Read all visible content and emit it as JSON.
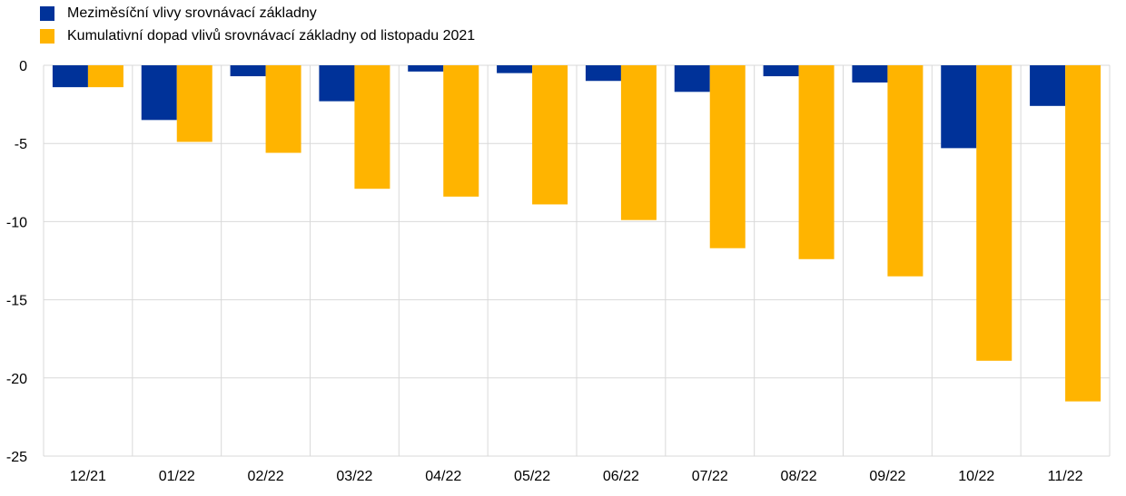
{
  "chart_data": {
    "type": "bar",
    "title": "",
    "xlabel": "",
    "ylabel": "",
    "categories": [
      "12/21",
      "01/22",
      "02/22",
      "03/22",
      "04/22",
      "05/22",
      "06/22",
      "07/22",
      "08/22",
      "09/22",
      "10/22",
      "11/22"
    ],
    "series": [
      {
        "name": "Meziměsíční vlivy srovnávací základny",
        "color": "#003299",
        "values": [
          -1.4,
          -3.5,
          -0.7,
          -2.3,
          -0.4,
          -0.5,
          -1.0,
          -1.7,
          -0.7,
          -1.1,
          -5.3,
          -2.6
        ]
      },
      {
        "name": "Kumulativní dopad vlivů srovnávací základny od listopadu 2021",
        "color": "#FFB400",
        "values": [
          -1.4,
          -4.9,
          -5.6,
          -7.9,
          -8.4,
          -8.9,
          -9.9,
          -11.7,
          -12.4,
          -13.5,
          -18.9,
          -21.5
        ]
      }
    ],
    "ylim": [
      -25,
      0
    ],
    "yticks": [
      0,
      -5,
      -10,
      -15,
      -20,
      -25
    ],
    "grid": true,
    "legend_position": "top-left"
  }
}
